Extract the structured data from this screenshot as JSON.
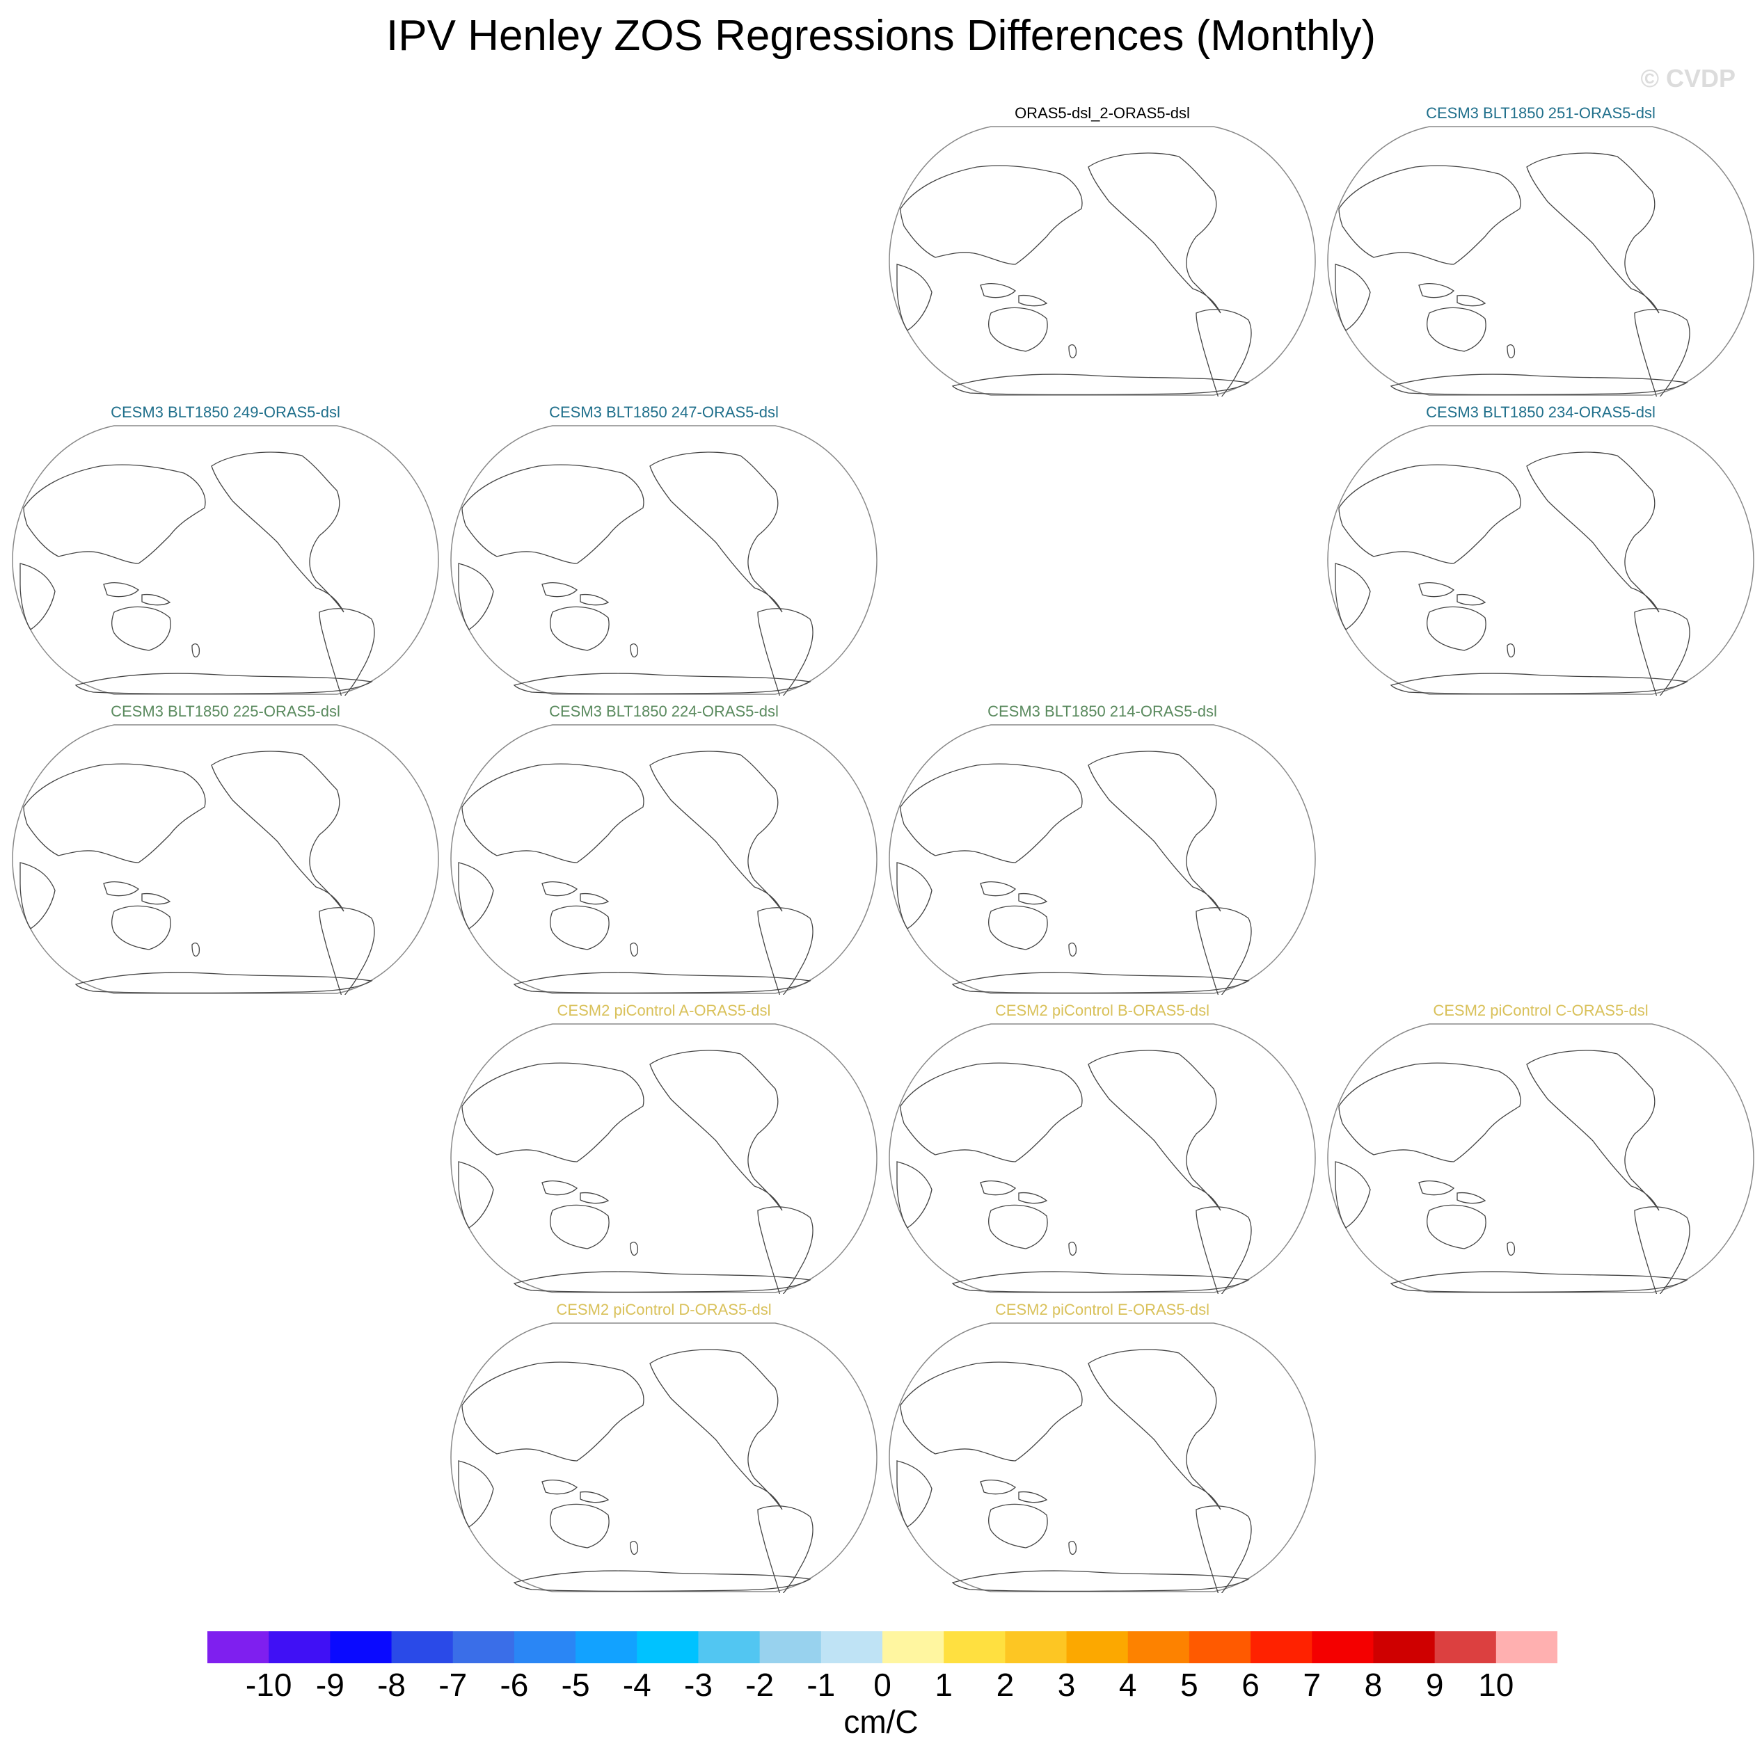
{
  "title": "IPV Henley ZOS Regressions Differences (Monthly)",
  "watermark": "© CVDP",
  "panels": [
    {
      "label": "ORAS5-dsl_2-ORAS5-dsl",
      "color": "#000000",
      "row": 0,
      "col": 2
    },
    {
      "label": "CESM3 BLT1850 251-ORAS5-dsl",
      "color": "#1f6f8b",
      "row": 0,
      "col": 3
    },
    {
      "label": "CESM3 BLT1850 249-ORAS5-dsl",
      "color": "#1f6f8b",
      "row": 1,
      "col": 0
    },
    {
      "label": "CESM3 BLT1850 247-ORAS5-dsl",
      "color": "#1f6f8b",
      "row": 1,
      "col": 1
    },
    {
      "label": "CESM3 BLT1850 234-ORAS5-dsl",
      "color": "#1f6f8b",
      "row": 1,
      "col": 3
    },
    {
      "label": "CESM3 BLT1850 225-ORAS5-dsl",
      "color": "#5a8a5e",
      "row": 2,
      "col": 0
    },
    {
      "label": "CESM3 BLT1850 224-ORAS5-dsl",
      "color": "#5a8a5e",
      "row": 2,
      "col": 1
    },
    {
      "label": "CESM3 BLT1850 214-ORAS5-dsl",
      "color": "#5a8a5e",
      "row": 2,
      "col": 2
    },
    {
      "label": "CESM2 piControl A-ORAS5-dsl",
      "color": "#d9c15a",
      "row": 3,
      "col": 1
    },
    {
      "label": "CESM2 piControl B-ORAS5-dsl",
      "color": "#d9c15a",
      "row": 3,
      "col": 2
    },
    {
      "label": "CESM2 piControl C-ORAS5-dsl",
      "color": "#d9c15a",
      "row": 3,
      "col": 3
    },
    {
      "label": "CESM2 piControl D-ORAS5-dsl",
      "color": "#d9c15a",
      "row": 4,
      "col": 1
    },
    {
      "label": "CESM2 piControl E-ORAS5-dsl",
      "color": "#d9c15a",
      "row": 4,
      "col": 2
    }
  ],
  "colorbar": {
    "colors": [
      "#7f1fef",
      "#4010f5",
      "#0a0aff",
      "#2a4ae8",
      "#3a6ee8",
      "#2a86f5",
      "#12a2ff",
      "#00c2ff",
      "#52c6f2",
      "#98d2ee",
      "#bfe3f5",
      "#fff6a0",
      "#ffe040",
      "#fdc623",
      "#fca800",
      "#fd8200",
      "#ff5a00",
      "#ff2200",
      "#f40000",
      "#cf0000",
      "#dc4040",
      "#ffb0b0"
    ],
    "labels": [
      "-10",
      "-9",
      "-8",
      "-7",
      "-6",
      "-5",
      "-4",
      "-3",
      "-2",
      "-1",
      "0",
      "1",
      "2",
      "3",
      "4",
      "5",
      "6",
      "7",
      "8",
      "9",
      "10"
    ],
    "units": "cm/C"
  }
}
